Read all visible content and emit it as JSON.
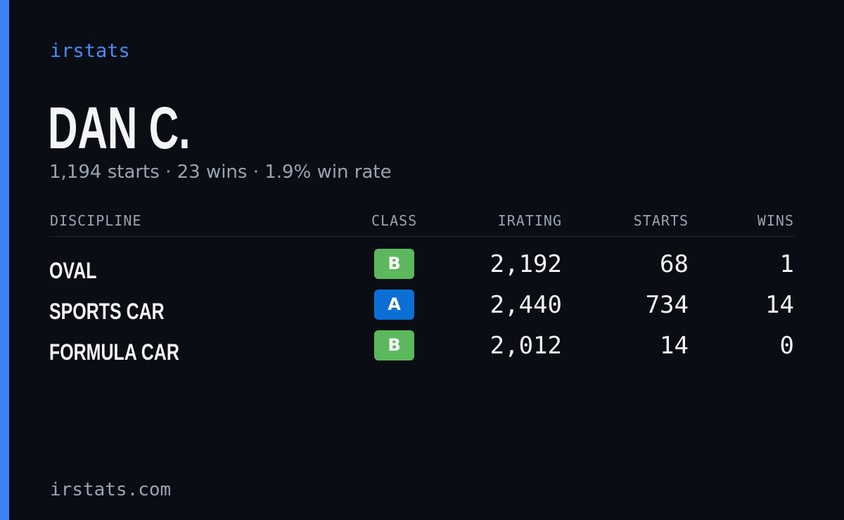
{
  "brand": "irstats",
  "driver": {
    "name": "DAN C.",
    "summary": "1,194 starts · 23 wins · 1.9% win rate"
  },
  "table": {
    "headers": {
      "discipline": "DISCIPLINE",
      "class": "CLASS",
      "irating": "IRATING",
      "starts": "STARTS",
      "wins": "WINS"
    },
    "rows": [
      {
        "discipline": "OVAL",
        "class": "B",
        "class_color": "#5cb85c",
        "irating": "2,192",
        "starts": "68",
        "wins": "1"
      },
      {
        "discipline": "SPORTS CAR",
        "class": "A",
        "class_color": "#0b6fd6",
        "irating": "2,440",
        "starts": "734",
        "wins": "14"
      },
      {
        "discipline": "FORMULA CAR",
        "class": "B",
        "class_color": "#5cb85c",
        "irating": "2,012",
        "starts": "14",
        "wins": "0"
      }
    ]
  },
  "footer": "irstats.com",
  "colors": {
    "accent": "#3b82f6",
    "background": "#0a0d14",
    "class_a": "#0b6fd6",
    "class_b": "#5cb85c"
  }
}
